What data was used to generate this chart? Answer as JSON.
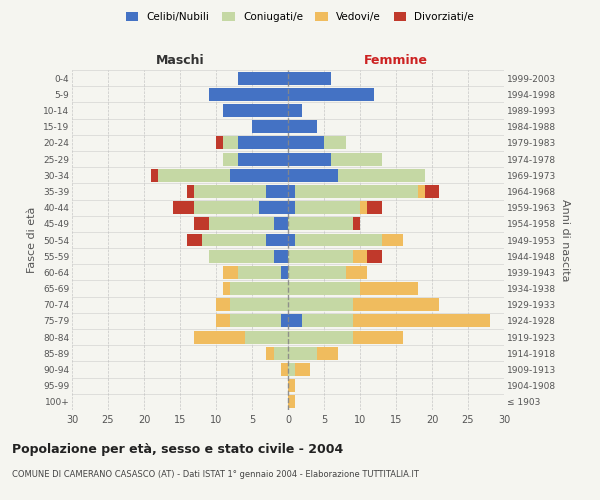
{
  "age_groups": [
    "100+",
    "95-99",
    "90-94",
    "85-89",
    "80-84",
    "75-79",
    "70-74",
    "65-69",
    "60-64",
    "55-59",
    "50-54",
    "45-49",
    "40-44",
    "35-39",
    "30-34",
    "25-29",
    "20-24",
    "15-19",
    "10-14",
    "5-9",
    "0-4"
  ],
  "birth_years": [
    "≤ 1903",
    "1904-1908",
    "1909-1913",
    "1914-1918",
    "1919-1923",
    "1924-1928",
    "1929-1933",
    "1934-1938",
    "1939-1943",
    "1944-1948",
    "1949-1953",
    "1954-1958",
    "1959-1963",
    "1964-1968",
    "1969-1973",
    "1974-1978",
    "1979-1983",
    "1984-1988",
    "1989-1993",
    "1994-1998",
    "1999-2003"
  ],
  "colors": {
    "celibi": "#4472c4",
    "coniugati": "#c5d8a4",
    "vedovi": "#f0bc5e",
    "divorziati": "#c0392b"
  },
  "maschi": {
    "celibi": [
      0,
      0,
      0,
      0,
      0,
      1,
      0,
      0,
      1,
      2,
      3,
      2,
      4,
      3,
      8,
      7,
      7,
      5,
      9,
      11,
      7
    ],
    "coniugati": [
      0,
      0,
      0,
      2,
      6,
      7,
      8,
      8,
      6,
      9,
      9,
      9,
      9,
      10,
      10,
      2,
      2,
      0,
      0,
      0,
      0
    ],
    "vedovi": [
      0,
      0,
      1,
      1,
      7,
      2,
      2,
      1,
      2,
      0,
      0,
      0,
      0,
      0,
      0,
      0,
      0,
      0,
      0,
      0,
      0
    ],
    "divorziati": [
      0,
      0,
      0,
      0,
      0,
      0,
      0,
      0,
      0,
      0,
      2,
      2,
      3,
      1,
      1,
      0,
      1,
      0,
      0,
      0,
      0
    ]
  },
  "femmine": {
    "celibi": [
      0,
      0,
      0,
      0,
      0,
      2,
      0,
      0,
      0,
      0,
      1,
      0,
      1,
      1,
      7,
      6,
      5,
      4,
      2,
      12,
      6
    ],
    "coniugati": [
      0,
      0,
      1,
      4,
      9,
      7,
      9,
      10,
      8,
      9,
      12,
      9,
      9,
      17,
      12,
      7,
      3,
      0,
      0,
      0,
      0
    ],
    "vedovi": [
      1,
      1,
      2,
      3,
      7,
      19,
      12,
      8,
      3,
      2,
      3,
      0,
      1,
      1,
      0,
      0,
      0,
      0,
      0,
      0,
      0
    ],
    "divorziati": [
      0,
      0,
      0,
      0,
      0,
      0,
      0,
      0,
      0,
      2,
      0,
      1,
      2,
      2,
      0,
      0,
      0,
      0,
      0,
      0,
      0
    ]
  },
  "xlim": 30,
  "title": "Popolazione per età, sesso e stato civile - 2004",
  "subtitle": "COMUNE DI CAMERANO CASASCO (AT) - Dati ISTAT 1° gennaio 2004 - Elaborazione TUTTITALIA.IT",
  "ylabel_left": "Fasce di età",
  "ylabel_right": "Anni di nascita",
  "xlabel_left": "Maschi",
  "xlabel_right": "Femmine",
  "legend_labels": [
    "Celibi/Nubili",
    "Coniugati/e",
    "Vedovi/e",
    "Divorziati/e"
  ],
  "bg_color": "#f5f5f0"
}
